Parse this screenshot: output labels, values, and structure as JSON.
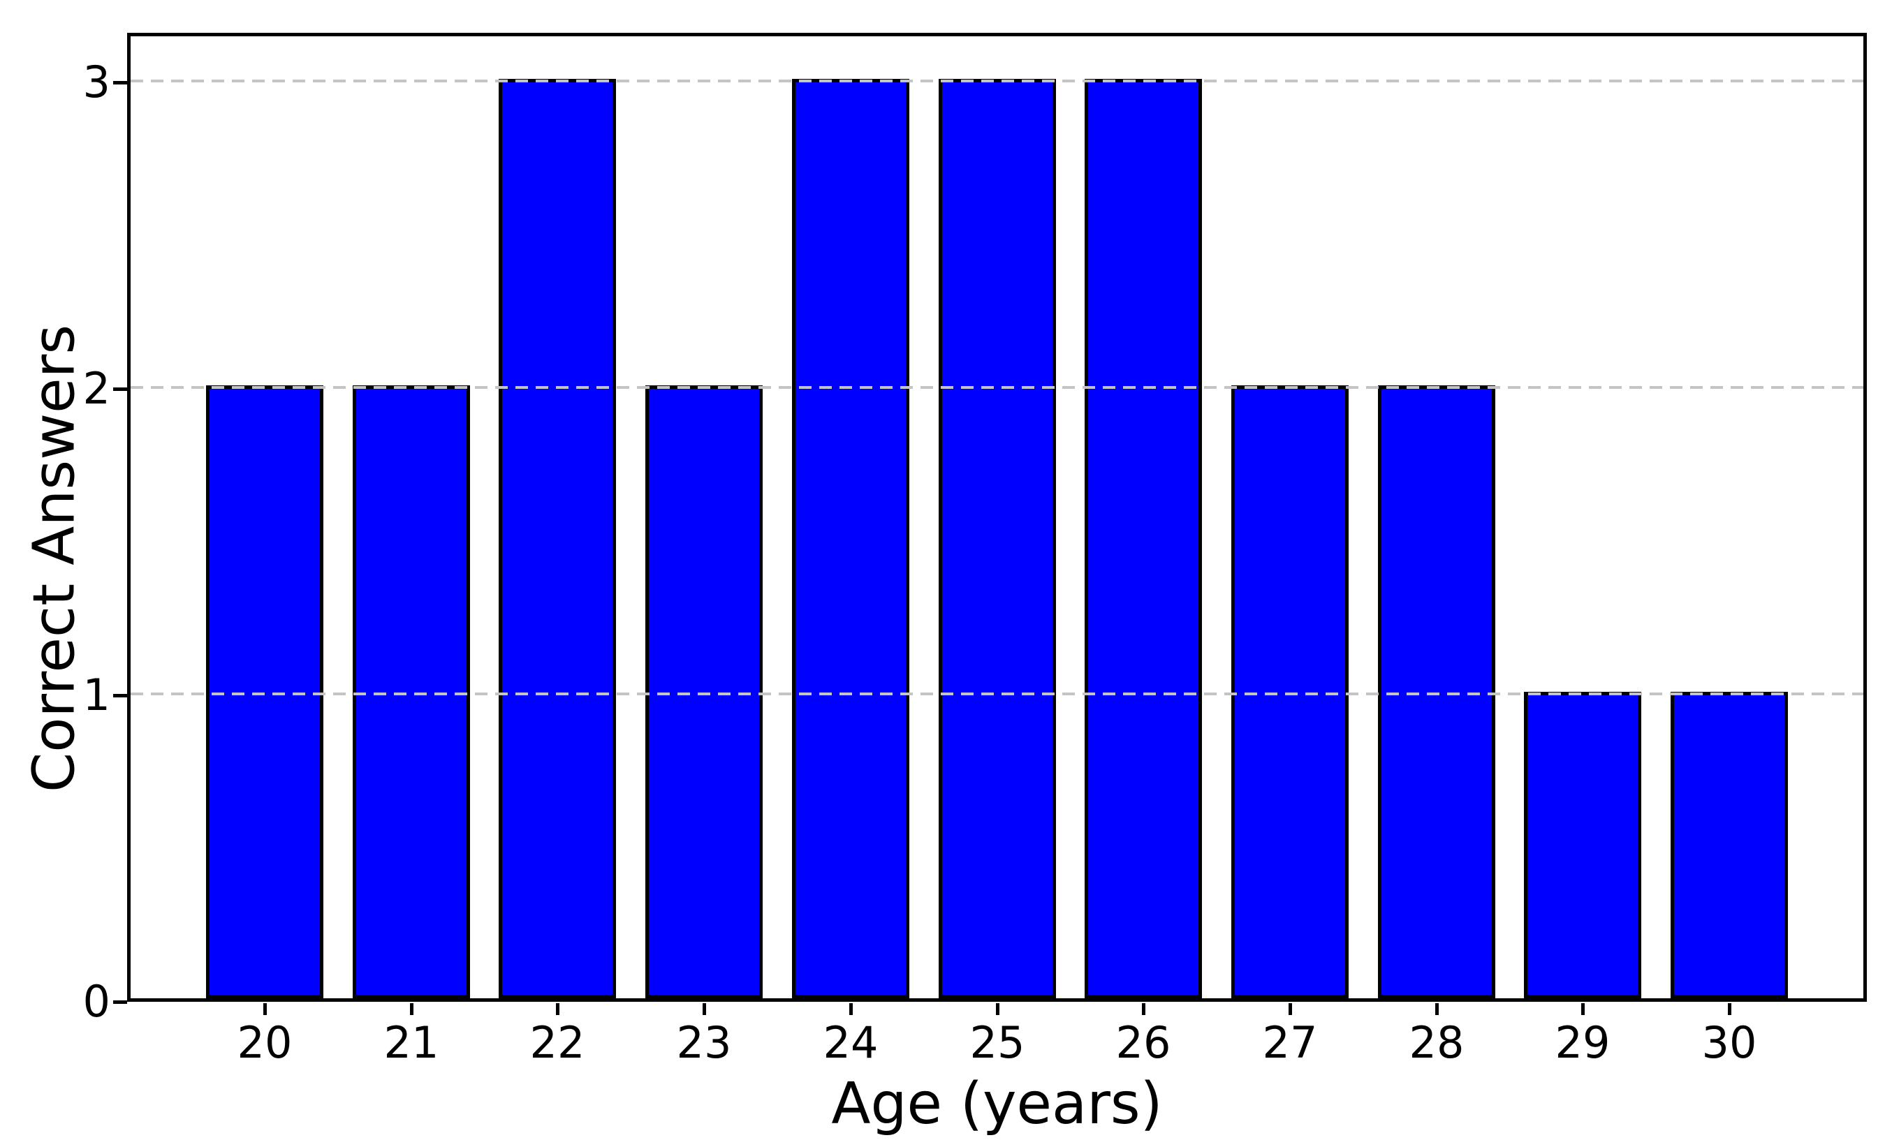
{
  "chart_data": {
    "type": "bar",
    "title": "",
    "xlabel": "Age (years)",
    "ylabel": "Correct Answers",
    "categories": [
      "20",
      "21",
      "22",
      "23",
      "24",
      "25",
      "26",
      "27",
      "28",
      "29",
      "30"
    ],
    "values": [
      2,
      2,
      3,
      2,
      3,
      3,
      3,
      2,
      2,
      1,
      1
    ],
    "yticks": [
      "0",
      "1",
      "2",
      "3"
    ],
    "ylim": [
      0,
      3.157
    ],
    "grid": "horizontal dashed gridlines at y=1,2,3, drawn above bars",
    "legend_position": "none",
    "colors": {
      "bar_fill": "#0000FF",
      "bar_edge": "#000000",
      "grid": "#C4C4C4",
      "axes": "#000000",
      "background": "#FFFFFF"
    }
  }
}
